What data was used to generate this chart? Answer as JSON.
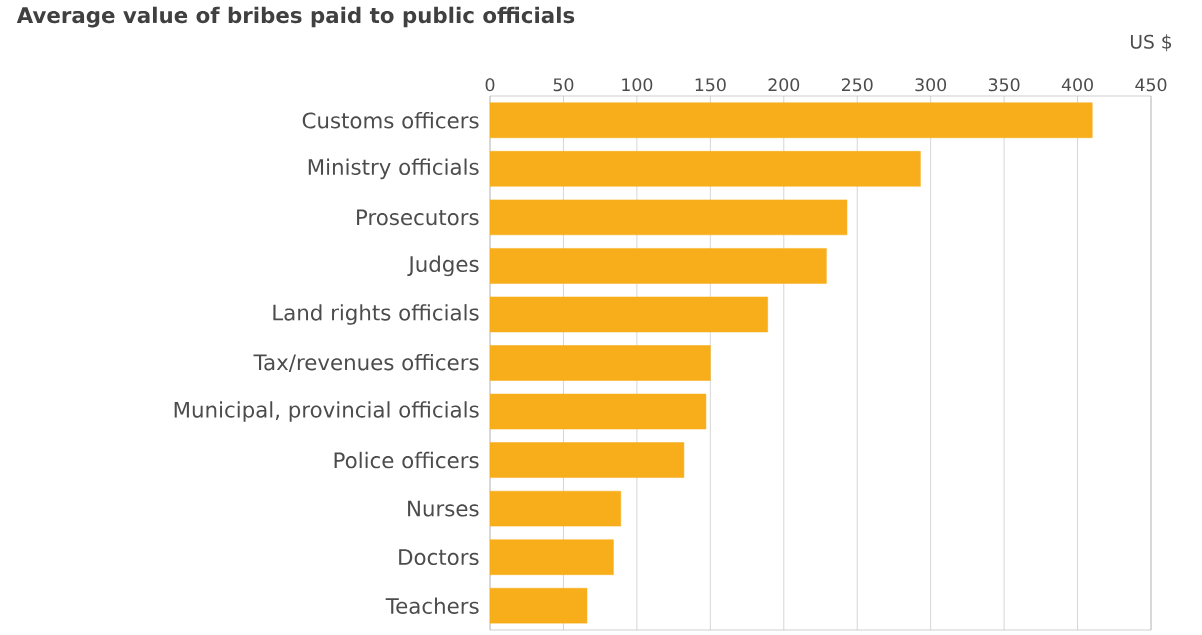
{
  "chart_data": {
    "type": "bar",
    "orientation": "horizontal",
    "title": "Average value of bribes paid to public officials",
    "xlabel": "US $",
    "categories": [
      "Customs officers",
      "Ministry officials",
      "Prosecutors",
      "Judges",
      "Land rights officials",
      "Tax/revenues officers",
      "Municipal, provincial officials",
      "Police officers",
      "Nurses",
      "Doctors",
      "Teachers"
    ],
    "values": [
      410,
      293,
      243,
      229,
      189,
      150,
      147,
      132,
      89,
      84,
      66
    ],
    "color": "#f7ae1a",
    "xlim": [
      0,
      450
    ],
    "xticks": [
      0,
      50,
      100,
      150,
      200,
      250,
      300,
      350,
      400,
      450
    ],
    "grid": "x"
  }
}
